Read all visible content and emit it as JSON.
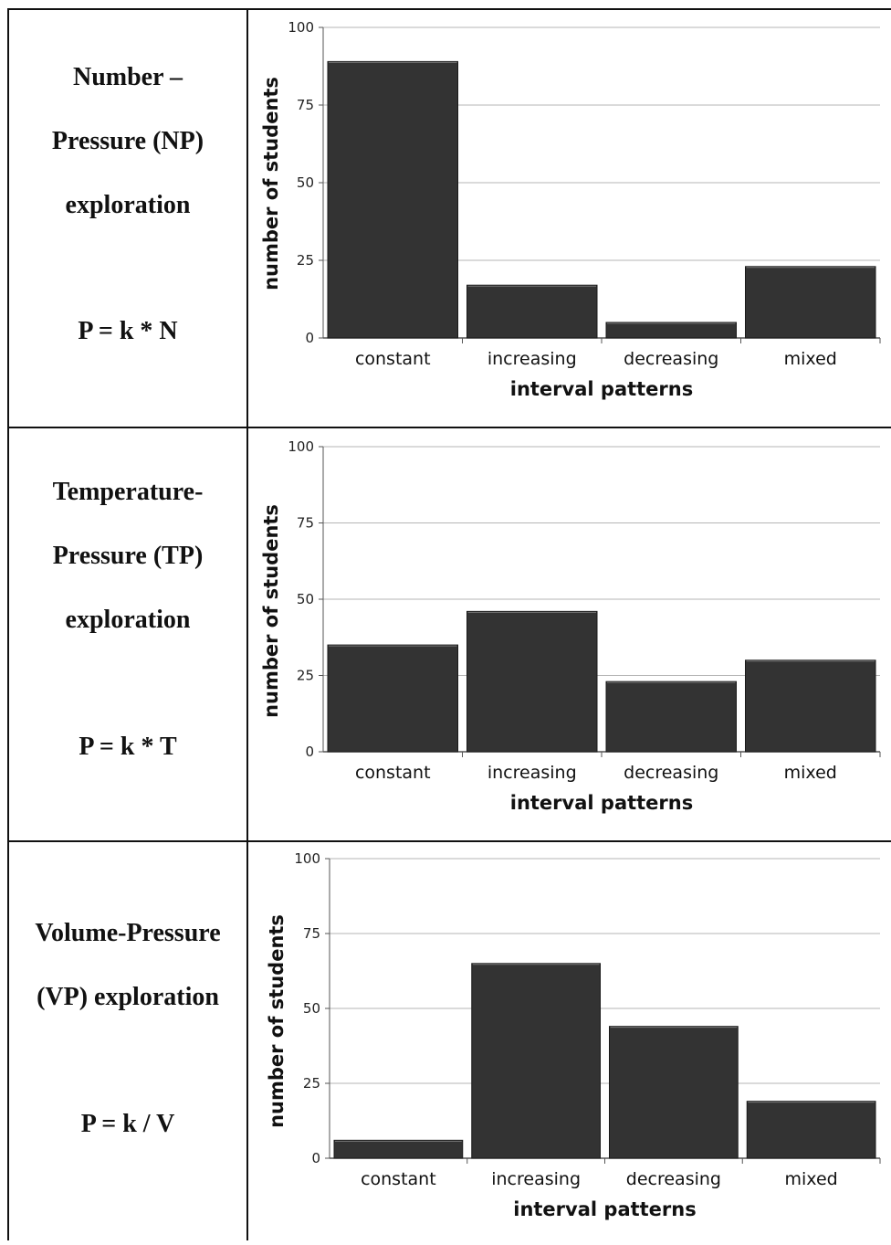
{
  "panels": [
    {
      "label_lines": [
        "Number –",
        "Pressure  (NP)",
        "exploration"
      ],
      "formula": "P = k * N"
    },
    {
      "label_lines": [
        "Temperature-",
        "Pressure (TP)",
        "exploration"
      ],
      "formula": "P = k * T"
    },
    {
      "label_lines": [
        "Volume-Pressure",
        "(VP) exploration"
      ],
      "formula": "P = k / V"
    }
  ],
  "chart_data": [
    {
      "type": "bar",
      "title": "",
      "categories": [
        "constant",
        "increasing",
        "decreasing",
        "mixed"
      ],
      "values": [
        89,
        17,
        5,
        23
      ],
      "xlabel": "interval patterns",
      "ylabel": "number of students",
      "ylim": [
        0,
        100
      ],
      "yticks": [
        0,
        25,
        50,
        75,
        100
      ],
      "grid": true,
      "bar_color": "#333333"
    },
    {
      "type": "bar",
      "title": "",
      "categories": [
        "constant",
        "increasing",
        "decreasing",
        "mixed"
      ],
      "values": [
        35,
        46,
        23,
        30
      ],
      "xlabel": "interval patterns",
      "ylabel": "number of students",
      "ylim": [
        0,
        100
      ],
      "yticks": [
        0,
        25,
        50,
        75,
        100
      ],
      "grid": true,
      "bar_color": "#333333"
    },
    {
      "type": "bar",
      "title": "",
      "categories": [
        "constant",
        "increasing",
        "decreasing",
        "mixed"
      ],
      "values": [
        6,
        65,
        44,
        19
      ],
      "xlabel": "interval patterns",
      "ylabel": "number of students",
      "ylim": [
        0,
        100
      ],
      "yticks": [
        0,
        25,
        50,
        75,
        100
      ],
      "grid": true,
      "bar_color": "#333333"
    }
  ]
}
